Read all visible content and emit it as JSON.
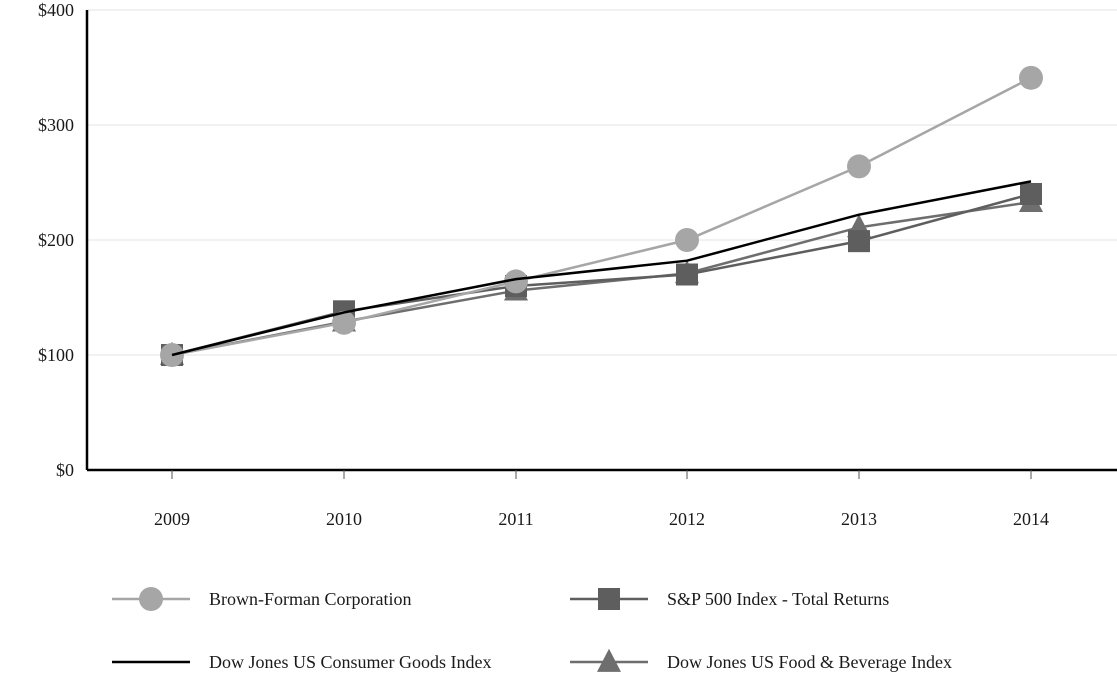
{
  "chart_data": {
    "type": "line",
    "title": "",
    "xlabel": "",
    "ylabel": "",
    "categories": [
      "2009",
      "2010",
      "2011",
      "2012",
      "2013",
      "2014"
    ],
    "ylim": [
      0,
      400
    ],
    "yticks": [
      0,
      100,
      200,
      300,
      400
    ],
    "ytick_labels": [
      "$0",
      "$100",
      "$200",
      "$300",
      "$400"
    ],
    "grid": "horizontal",
    "legend_position": "bottom",
    "series": [
      {
        "name": "Brown-Forman Corporation",
        "values": [
          100,
          128,
          164,
          200,
          264,
          341
        ],
        "color": "#a6a6a6",
        "marker": "circle"
      },
      {
        "name": "S&P 500 Index - Total Returns",
        "values": [
          100,
          138,
          160,
          170,
          199,
          240
        ],
        "color": "#5e5e5e",
        "marker": "square"
      },
      {
        "name": "Dow Jones US Consumer Goods Index",
        "values": [
          100,
          137,
          166,
          182,
          222,
          251
        ],
        "color": "#000000",
        "marker": "none"
      },
      {
        "name": "Dow Jones US Food & Beverage Index",
        "values": [
          100,
          129,
          156,
          171,
          211,
          233
        ],
        "color": "#6e6e6e",
        "marker": "triangle"
      }
    ]
  }
}
